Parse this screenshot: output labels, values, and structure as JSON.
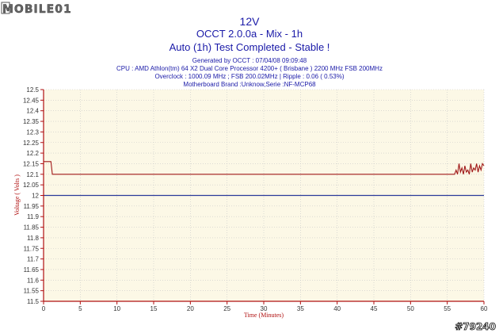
{
  "logo": {
    "text": "MOBILE01"
  },
  "watermark": "#79240",
  "chart_data": {
    "type": "line",
    "title": "12V",
    "subtitle": "OCCT 2.0.0a - Mix - 1h",
    "status": "Auto (1h) Test Completed - Stable !",
    "info_lines": [
      "Generated by OCCT : 07/04/08 09:09:48",
      "CPU : AMD Athlon(tm) 64 X2 Dual Core Processor 4200+ ( Brisbane ) 2200 MHz FSB 200MHz",
      "Overclock : 1000.09 MHz ; FSB 200.02MHz | Ripple : 0.06 ( 0.53%)",
      "Motherboard Brand :Unknow,Serie :NF-MCP68"
    ],
    "xlabel": "Time (Minutes)",
    "ylabel": "Voltage ( Volts )",
    "xlim": [
      0,
      60
    ],
    "ylim": [
      11.5,
      12.5
    ],
    "x_ticks": [
      0,
      5,
      10,
      15,
      20,
      25,
      30,
      35,
      40,
      45,
      50,
      55,
      60
    ],
    "y_ticks": [
      "12.5",
      "12.45",
      "12.4",
      "12.35",
      "12.3",
      "12.25",
      "12.2",
      "12.15",
      "12.1",
      "12.05",
      "12",
      "11.95",
      "11.9",
      "11.85",
      "11.8",
      "11.75",
      "11.7",
      "11.65",
      "11.6",
      "11.55",
      "11.5"
    ],
    "grid": true,
    "colors": {
      "background": "#fcf8e6",
      "grid": "#c8c8c8",
      "axis": "#b01010",
      "voltage": "#a01818",
      "reference": "#2a3a9a",
      "title": "#1a1aa8"
    },
    "series": [
      {
        "role": "voltage",
        "x": [
          0,
          1.0,
          1.2,
          56.0,
          56.2,
          56.4,
          56.6,
          56.8,
          57.0,
          57.2,
          57.4,
          57.6,
          57.8,
          58.0,
          58.2,
          58.4,
          58.6,
          58.8,
          59.0,
          59.2,
          59.4,
          59.6,
          59.8,
          60
        ],
        "y": [
          12.16,
          12.16,
          12.1,
          12.1,
          12.12,
          12.1,
          12.15,
          12.11,
          12.13,
          12.1,
          12.14,
          12.11,
          12.12,
          12.1,
          12.15,
          12.11,
          12.13,
          12.12,
          12.15,
          12.11,
          12.14,
          12.12,
          12.15,
          12.14
        ]
      },
      {
        "role": "reference",
        "x": [
          0,
          60
        ],
        "y": [
          12.0,
          12.0
        ]
      }
    ]
  }
}
